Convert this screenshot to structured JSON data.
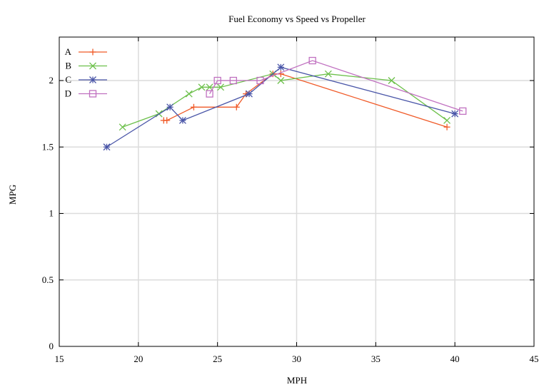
{
  "chart_data": {
    "type": "line",
    "title": "Fuel Economy vs Speed vs Propeller",
    "xlabel": "MPH",
    "ylabel": "MPG",
    "xlim": [
      15,
      45
    ],
    "ylim": [
      0,
      2.3
    ],
    "xticks": [
      15,
      20,
      25,
      30,
      35,
      40,
      45
    ],
    "yticks": [
      0,
      0.5,
      1,
      1.5,
      2
    ],
    "ytick_labels": [
      "0",
      "0.5",
      "1",
      "1.5",
      "2"
    ],
    "grid": true,
    "legend_position": "top-left",
    "series": [
      {
        "name": "A",
        "color": "#f05a28",
        "marker": "plus",
        "points": [
          [
            21.6,
            1.7
          ],
          [
            21.8,
            1.7
          ],
          [
            23.5,
            1.8
          ],
          [
            26.2,
            1.8
          ],
          [
            26.8,
            1.9
          ],
          [
            28.5,
            2.05
          ],
          [
            29,
            2.05
          ],
          [
            39.5,
            1.65
          ]
        ]
      },
      {
        "name": "B",
        "color": "#6cc04a",
        "marker": "cross",
        "points": [
          [
            19,
            1.65
          ],
          [
            21.3,
            1.75
          ],
          [
            23.2,
            1.9
          ],
          [
            24,
            1.95
          ],
          [
            24.5,
            1.95
          ],
          [
            25.2,
            1.95
          ],
          [
            28.5,
            2.05
          ],
          [
            29,
            2.0
          ],
          [
            32,
            2.05
          ],
          [
            36,
            2.0
          ],
          [
            39.5,
            1.7
          ]
        ]
      },
      {
        "name": "C",
        "color": "#4a56a8",
        "marker": "star",
        "points": [
          [
            18,
            1.5
          ],
          [
            22,
            1.8
          ],
          [
            22.8,
            1.7
          ],
          [
            27,
            1.9
          ],
          [
            29,
            2.1
          ],
          [
            40,
            1.75
          ]
        ]
      },
      {
        "name": "D",
        "color": "#c070c0",
        "marker": "square",
        "points": [
          [
            24.5,
            1.9
          ],
          [
            25,
            2.0
          ],
          [
            26,
            2.0
          ],
          [
            27.7,
            2.0
          ],
          [
            31,
            2.15
          ],
          [
            40.5,
            1.77
          ]
        ]
      }
    ]
  }
}
